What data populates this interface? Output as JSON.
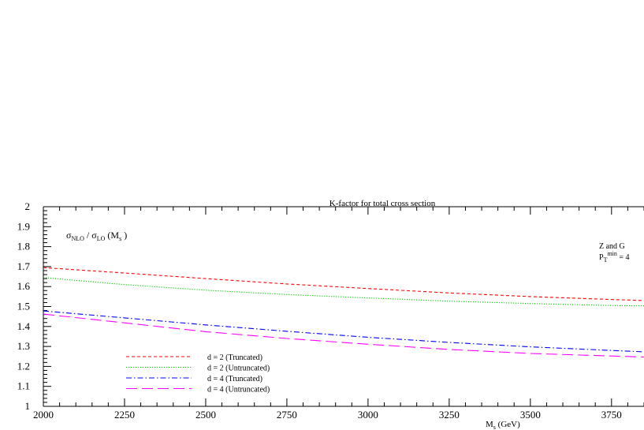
{
  "chart_data": {
    "type": "line",
    "title": "K-factor for total cross section",
    "ylabel_parts": {
      "sigma": "σ",
      "num_sub": "NLO",
      "slash": " / ",
      "den_sub": "LO",
      "arg_open": "  (M",
      "arg_sub": "s",
      "arg_close": " )"
    },
    "xlabel_parts": {
      "main": "M",
      "sub": "s",
      "rest": " (GeV)"
    },
    "annotation": {
      "line1": "Z and G",
      "p": "P",
      "p_sub": "T",
      "p_sup": "min",
      "p_rest": " = 4"
    },
    "xlim": [
      2000,
      3850
    ],
    "ylim": [
      1,
      2
    ],
    "x_ticks": [
      "2000",
      "2250",
      "2500",
      "2750",
      "3000",
      "3250",
      "3500",
      "3750"
    ],
    "y_ticks": [
      "1",
      "1.1",
      "1.2",
      "1.3",
      "1.4",
      "1.5",
      "1.6",
      "1.7",
      "1.8",
      "1.9",
      "2"
    ],
    "grid": false,
    "legend_position": "bottom-left",
    "series": [
      {
        "name": "d = 2 (Truncated)",
        "color": "#ff0000",
        "dash": "short-dash",
        "x": [
          2000,
          2250,
          2500,
          2750,
          3000,
          3250,
          3500,
          3750,
          3850
        ],
        "y": [
          1.695,
          1.668,
          1.64,
          1.613,
          1.59,
          1.568,
          1.55,
          1.535,
          1.53
        ]
      },
      {
        "name": "d = 2 (Untruncated)",
        "color": "#00cc00",
        "dash": "dotted",
        "x": [
          2000,
          2250,
          2500,
          2750,
          3000,
          3250,
          3500,
          3750,
          3850
        ],
        "y": [
          1.645,
          1.61,
          1.582,
          1.56,
          1.543,
          1.527,
          1.515,
          1.505,
          1.503
        ]
      },
      {
        "name": "d = 4 (Truncated)",
        "color": "#0000ff",
        "dash": "dash-dot",
        "x": [
          2000,
          2250,
          2500,
          2750,
          3000,
          3250,
          3500,
          3750,
          3850
        ],
        "y": [
          1.478,
          1.443,
          1.408,
          1.376,
          1.346,
          1.32,
          1.298,
          1.28,
          1.273
        ]
      },
      {
        "name": "d = 4 (Untruncated)",
        "color": "#ff00ff",
        "dash": "long-dash",
        "x": [
          2000,
          2250,
          2500,
          2750,
          3000,
          3250,
          3500,
          3750,
          3850
        ],
        "y": [
          1.462,
          1.418,
          1.374,
          1.34,
          1.311,
          1.285,
          1.265,
          1.252,
          1.247
        ]
      }
    ]
  }
}
